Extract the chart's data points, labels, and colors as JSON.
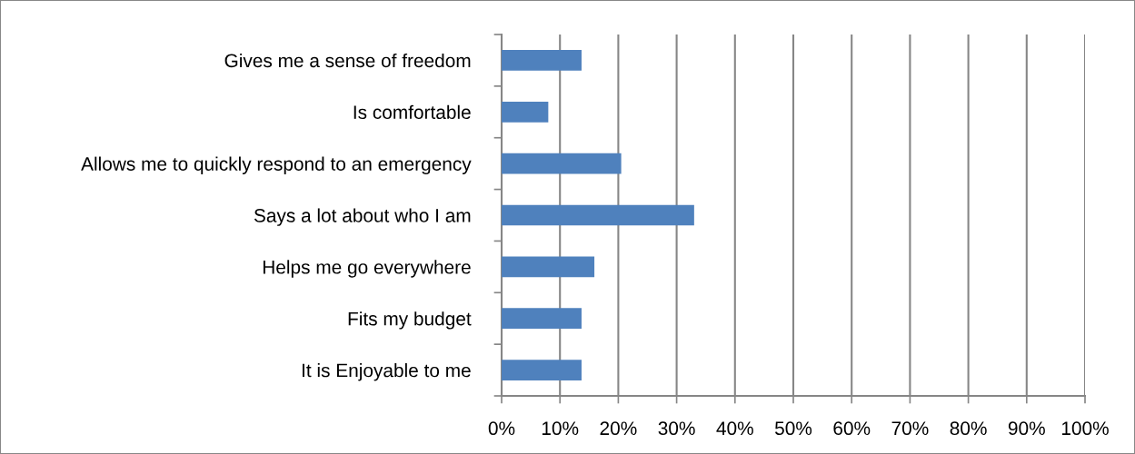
{
  "chart_data": {
    "type": "bar",
    "orientation": "horizontal",
    "categories": [
      "Gives me a sense of freedom",
      "Is comfortable",
      "Allows me to quickly respond to an emergency",
      "Says a lot about who I am",
      "Helps me go everywhere",
      "Fits my budget",
      "It is Enjoyable to me"
    ],
    "values": [
      13.7,
      8.0,
      20.5,
      33.0,
      15.9,
      13.7,
      13.7
    ],
    "color": "#4f81bd",
    "xlim": [
      0,
      100
    ],
    "xticks": [
      {
        "value": 0,
        "label": "0%"
      },
      {
        "value": 10,
        "label": "10%"
      },
      {
        "value": 20,
        "label": "20%"
      },
      {
        "value": 30,
        "label": "30%"
      },
      {
        "value": 40,
        "label": "40%"
      },
      {
        "value": 50,
        "label": "50%"
      },
      {
        "value": 60,
        "label": "60%"
      },
      {
        "value": 70,
        "label": "70%"
      },
      {
        "value": 80,
        "label": "80%"
      },
      {
        "value": 90,
        "label": "90%"
      },
      {
        "value": 100,
        "label": "100%"
      }
    ],
    "grid": "x"
  }
}
